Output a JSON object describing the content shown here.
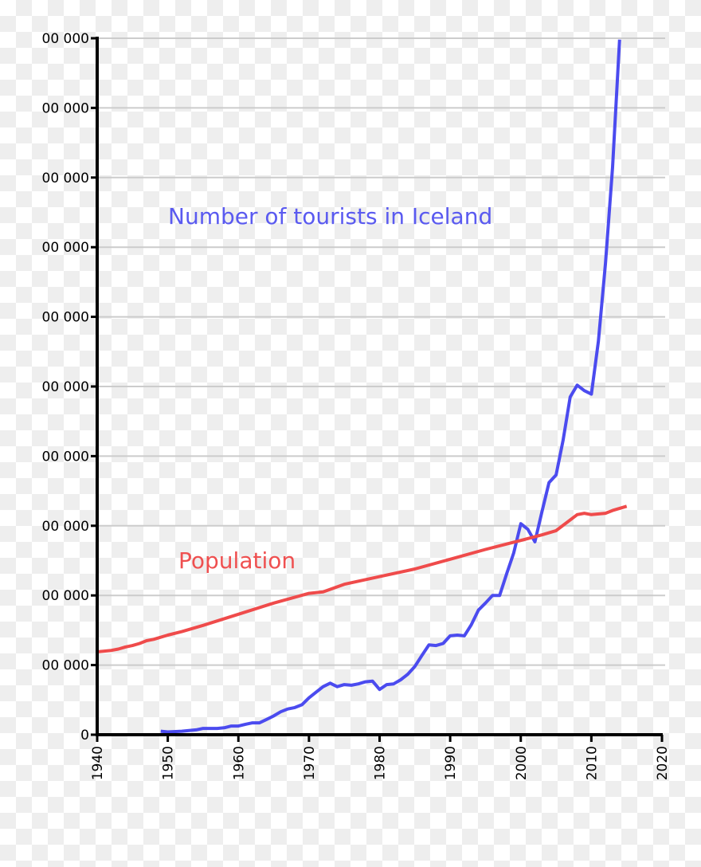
{
  "chart_data": {
    "type": "line",
    "title": "",
    "xlabel": "",
    "ylabel": "",
    "xlim": [
      1940,
      2020
    ],
    "ylim": [
      0,
      1000000
    ],
    "grid": "horizontal",
    "x_ticks": [
      "1940",
      "1950",
      "1960",
      "1970",
      "1980",
      "1990",
      "2000",
      "2010",
      "2020"
    ],
    "y_ticks": [
      {
        "value": 0,
        "label": "0"
      },
      {
        "value": 100000,
        "label": "00 000"
      },
      {
        "value": 200000,
        "label": "00 000"
      },
      {
        "value": 300000,
        "label": "00 000"
      },
      {
        "value": 400000,
        "label": "00 000"
      },
      {
        "value": 500000,
        "label": "00 000"
      },
      {
        "value": 600000,
        "label": "00 000"
      },
      {
        "value": 700000,
        "label": "00 000"
      },
      {
        "value": 800000,
        "label": "00 000"
      },
      {
        "value": 900000,
        "label": "00 000"
      },
      {
        "value": 1000000,
        "label": "00 000"
      }
    ],
    "series": [
      {
        "name": "Number of tourists in Iceland",
        "color": "#4b4bef",
        "x": [
          1949,
          1950,
          1952,
          1954,
          1955,
          1957,
          1958,
          1959,
          1960,
          1961,
          1962,
          1963,
          1964,
          1965,
          1966,
          1967,
          1968,
          1969,
          1970,
          1971,
          1972,
          1973,
          1974,
          1975,
          1976,
          1977,
          1978,
          1979,
          1980,
          1981,
          1982,
          1983,
          1984,
          1985,
          1986,
          1987,
          1988,
          1989,
          1990,
          1991,
          1992,
          1993,
          1994,
          1995,
          1996,
          1997,
          1998,
          1999,
          2000,
          2001,
          2002,
          2003,
          2004,
          2005,
          2006,
          2007,
          2008,
          2009,
          2010,
          2011,
          2012,
          2013,
          2014
        ],
        "values": [
          5000,
          4000,
          5000,
          7000,
          9000,
          9000,
          10000,
          12500,
          12500,
          15000,
          17000,
          17000,
          22000,
          27000,
          33000,
          37000,
          39000,
          43000,
          53000,
          61000,
          69000,
          74000,
          69000,
          72000,
          71000,
          73000,
          76000,
          77000,
          65000,
          72000,
          73000,
          79000,
          87000,
          98000,
          114000,
          129000,
          128000,
          131000,
          142000,
          143000,
          142000,
          158000,
          179000,
          189000,
          200000,
          200000,
          231000,
          261000,
          303000,
          295000,
          277000,
          320000,
          362000,
          373000,
          423000,
          485000,
          502000,
          494000,
          489000,
          565000,
          677000,
          815000,
          998000
        ]
      },
      {
        "name": "Population",
        "color": "#ef4b4b",
        "x": [
          1940,
          1942,
          1943,
          1944,
          1945,
          1946,
          1947,
          1948,
          1950,
          1952,
          1955,
          1960,
          1965,
          1970,
          1972,
          1975,
          1980,
          1985,
          1990,
          1995,
          2000,
          2003,
          2005,
          2008,
          2009,
          2010,
          2012,
          2013,
          2015
        ],
        "values": [
          119000,
          121000,
          123000,
          126000,
          128000,
          131000,
          135000,
          137000,
          143000,
          148000,
          157000,
          173000,
          189000,
          203000,
          205000,
          216000,
          227000,
          238000,
          252000,
          266000,
          279000,
          287000,
          293000,
          316000,
          318000,
          316000,
          318000,
          322000,
          328000
        ]
      }
    ]
  }
}
